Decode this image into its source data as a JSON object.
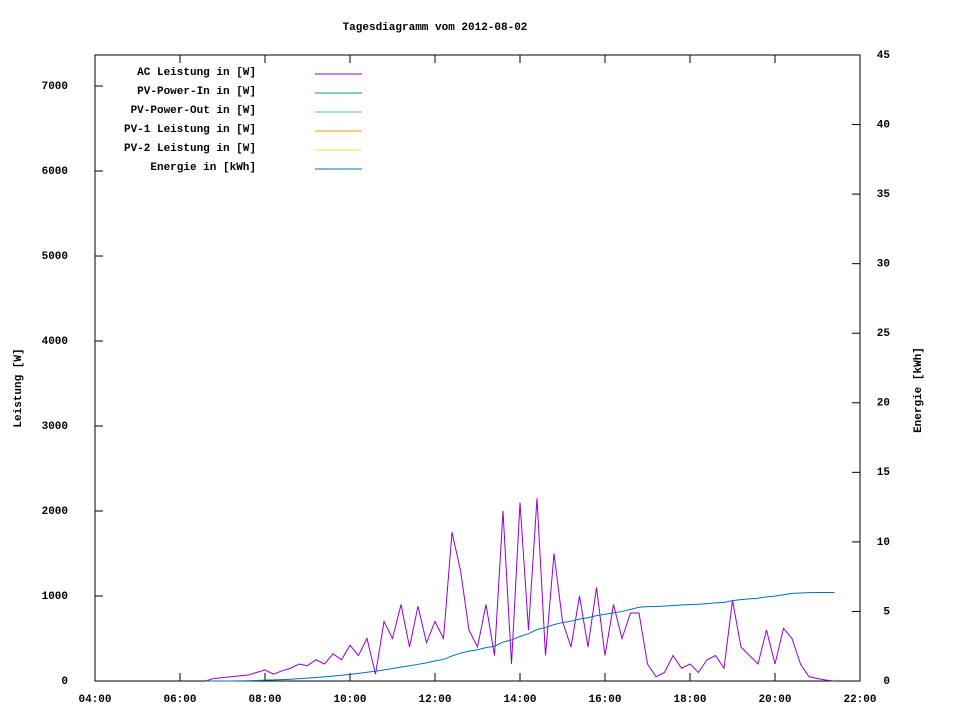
{
  "chart_data": {
    "type": "line",
    "title": "Tagesdiagramm vom 2012-08-02",
    "ylabel": "Leistung [W]",
    "y2label": "Energie [kWh]",
    "x": [
      6.6,
      6.8,
      7,
      7.2,
      7.4,
      7.6,
      7.8,
      8,
      8.2,
      8.4,
      8.6,
      8.8,
      9,
      9.2,
      9.4,
      9.6,
      9.8,
      10,
      10.2,
      10.4,
      10.6,
      10.8,
      11,
      11.2,
      11.4,
      11.6,
      11.8,
      12,
      12.2,
      12.4,
      12.6,
      12.8,
      13,
      13.2,
      13.4,
      13.6,
      13.8,
      14,
      14.2,
      14.4,
      14.6,
      14.8,
      15,
      15.2,
      15.4,
      15.6,
      15.8,
      16,
      16.2,
      16.4,
      16.6,
      16.8,
      17,
      17.2,
      17.4,
      17.6,
      17.8,
      18,
      18.2,
      18.4,
      18.6,
      18.8,
      19,
      19.2,
      19.4,
      19.6,
      19.8,
      20,
      20.2,
      20.4,
      20.6,
      20.8,
      21,
      21.2,
      21.4
    ],
    "series": [
      {
        "name": "AC Leistung in [W]",
        "color": "#9400d3",
        "values": [
          0,
          30,
          40,
          50,
          60,
          70,
          100,
          130,
          80,
          120,
          150,
          200,
          180,
          250,
          200,
          320,
          250,
          420,
          300,
          500,
          80,
          700,
          500,
          900,
          400,
          880,
          450,
          700,
          500,
          1750,
          1300,
          600,
          400,
          900,
          300,
          2000,
          200,
          2100,
          600,
          2150,
          300,
          1500,
          700,
          400,
          1000,
          400,
          1100,
          300,
          900,
          500,
          800,
          800,
          200,
          50,
          100,
          300,
          150,
          200,
          100,
          250,
          300,
          150,
          950,
          400,
          300,
          200,
          600,
          200,
          620,
          500,
          200,
          50,
          30,
          10,
          0
        ]
      },
      {
        "name": "PV-Power-In in [W]",
        "color": "#009e73",
        "values": [
          null,
          null,
          null,
          null,
          null,
          null,
          null,
          null,
          null,
          null,
          null,
          null,
          null,
          null,
          null,
          null,
          null,
          null,
          null,
          null,
          null,
          null,
          null,
          null,
          null,
          null,
          null,
          null,
          null,
          null,
          null,
          null,
          null,
          null,
          null,
          null,
          null,
          null,
          null,
          null,
          null,
          null,
          null,
          null,
          null,
          null,
          null,
          null,
          null,
          null,
          null,
          null,
          null,
          null,
          null,
          null,
          null,
          null,
          null,
          null,
          null,
          null,
          null,
          null,
          null,
          null,
          null,
          null,
          null,
          null,
          null,
          null,
          null,
          null,
          null
        ]
      },
      {
        "name": "PV-Power-Out in [W]",
        "color": "#56b4e9",
        "values": [
          null,
          null,
          null,
          null,
          null,
          null,
          null,
          null,
          null,
          null,
          null,
          null,
          null,
          null,
          null,
          null,
          null,
          null,
          null,
          null,
          null,
          null,
          null,
          null,
          null,
          null,
          null,
          null,
          null,
          null,
          null,
          null,
          null,
          null,
          null,
          null,
          null,
          null,
          null,
          null,
          null,
          null,
          null,
          null,
          null,
          null,
          null,
          null,
          null,
          null,
          null,
          null,
          null,
          null,
          null,
          null,
          null,
          null,
          null,
          null,
          null,
          null,
          null,
          null,
          null,
          null,
          null,
          null,
          null,
          null,
          null,
          null,
          null,
          null,
          null
        ]
      },
      {
        "name": "PV-1 Leistung in [W]",
        "color": "#e69f00",
        "values": [
          null,
          null,
          null,
          null,
          null,
          null,
          null,
          null,
          null,
          null,
          null,
          null,
          null,
          null,
          null,
          null,
          null,
          null,
          null,
          null,
          null,
          null,
          null,
          null,
          null,
          null,
          null,
          null,
          null,
          null,
          null,
          null,
          null,
          null,
          null,
          null,
          null,
          null,
          null,
          null,
          null,
          null,
          null,
          null,
          null,
          null,
          null,
          null,
          null,
          null,
          null,
          null,
          null,
          null,
          null,
          null,
          null,
          null,
          null,
          null,
          null,
          null,
          null,
          null,
          null,
          null,
          null,
          null,
          null,
          null,
          null,
          null,
          null,
          null,
          null
        ]
      },
      {
        "name": "PV-2 Leistung in [W]",
        "color": "#f0e442",
        "values": [
          null,
          null,
          null,
          null,
          null,
          null,
          null,
          null,
          null,
          null,
          null,
          null,
          null,
          null,
          null,
          null,
          null,
          null,
          null,
          null,
          null,
          null,
          null,
          null,
          null,
          null,
          null,
          null,
          null,
          null,
          null,
          null,
          null,
          null,
          null,
          null,
          null,
          null,
          null,
          null,
          null,
          null,
          null,
          null,
          null,
          null,
          null,
          null,
          null,
          null,
          null,
          null,
          null,
          null,
          null,
          null,
          null,
          null,
          null,
          null,
          null,
          null,
          null,
          null,
          null,
          null,
          null,
          null,
          null,
          null,
          null,
          null,
          null,
          null,
          null
        ]
      },
      {
        "name": "Energie in [kWh]",
        "color": "#0072b2",
        "axis": "y2",
        "values": [
          0,
          0,
          0,
          0,
          0.01,
          0.02,
          0.04,
          0.06,
          0.08,
          0.1,
          0.13,
          0.17,
          0.21,
          0.25,
          0.3,
          0.35,
          0.41,
          0.48,
          0.55,
          0.63,
          0.7,
          0.8,
          0.9,
          1,
          1.1,
          1.2,
          1.3,
          1.45,
          1.55,
          1.8,
          2,
          2.15,
          2.25,
          2.4,
          2.5,
          2.8,
          2.95,
          3.2,
          3.4,
          3.7,
          3.85,
          4.05,
          4.2,
          4.3,
          4.45,
          4.55,
          4.7,
          4.8,
          4.9,
          5,
          5.15,
          5.3,
          5.35,
          5.36,
          5.38,
          5.43,
          5.46,
          5.5,
          5.52,
          5.56,
          5.62,
          5.65,
          5.78,
          5.85,
          5.9,
          5.95,
          6.05,
          6.1,
          6.2,
          6.3,
          6.33,
          6.35,
          6.36,
          6.36,
          6.36
        ]
      }
    ],
    "xlim": [
      4,
      22
    ],
    "xticks": [
      {
        "value": 4,
        "label": "04:00"
      },
      {
        "value": 6,
        "label": "06:00"
      },
      {
        "value": 8,
        "label": "08:00"
      },
      {
        "value": 10,
        "label": "10:00"
      },
      {
        "value": 12,
        "label": "12:00"
      },
      {
        "value": 14,
        "label": "14:00"
      },
      {
        "value": 16,
        "label": "16:00"
      },
      {
        "value": 18,
        "label": "18:00"
      },
      {
        "value": 20,
        "label": "20:00"
      },
      {
        "value": 22,
        "label": "22:00"
      }
    ],
    "ylim": [
      0,
      7365
    ],
    "yticks": [
      0,
      1000,
      2000,
      3000,
      4000,
      5000,
      6000,
      7000
    ],
    "y2lim": [
      0,
      45
    ],
    "y2ticks": [
      0,
      5,
      10,
      15,
      20,
      25,
      30,
      35,
      40,
      45
    ],
    "legend": "upper left"
  }
}
